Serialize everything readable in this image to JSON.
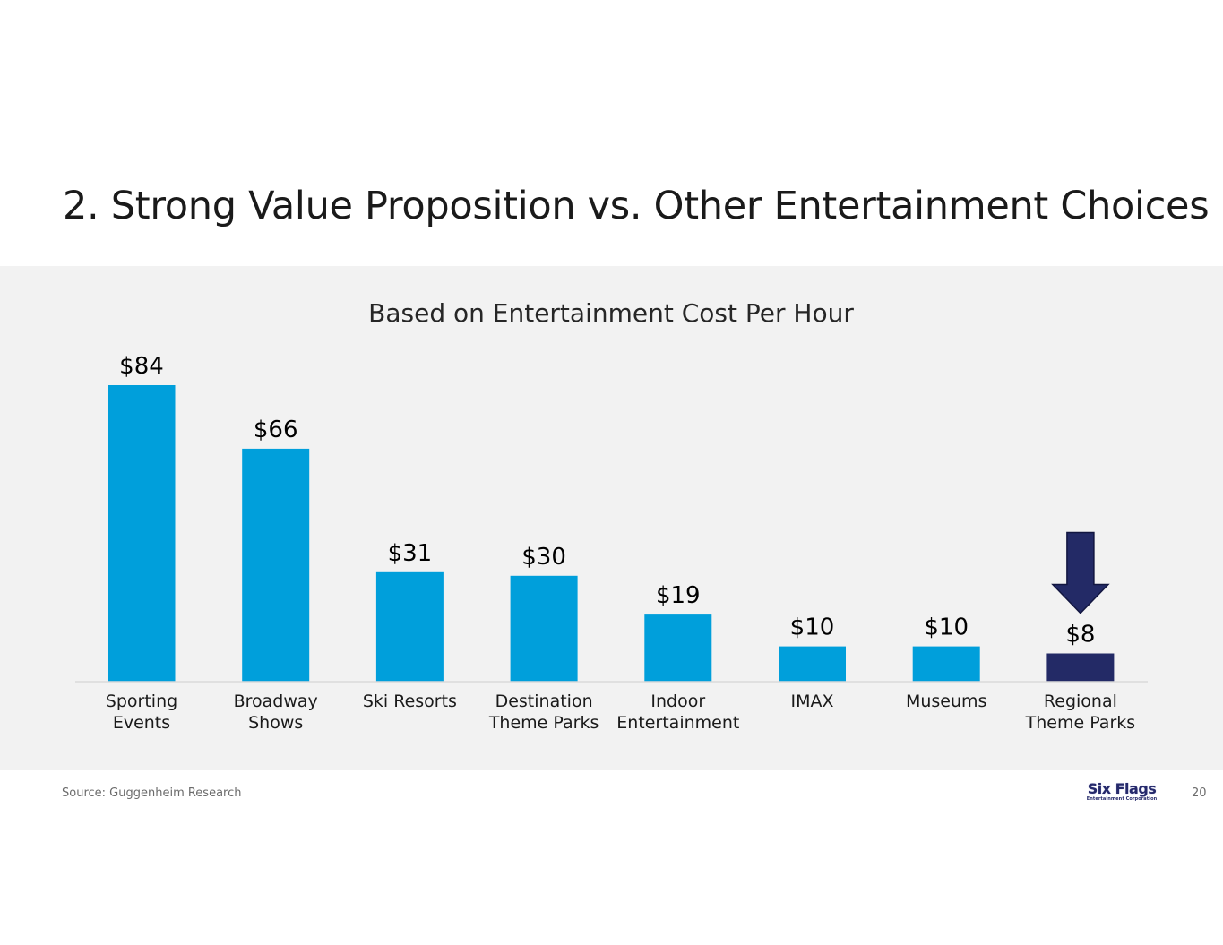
{
  "slide": {
    "title": "2. Strong Value Proposition vs. Other Entertainment Choices",
    "source": "Source: Guggenheim Research",
    "page_number": "20",
    "logo": {
      "main": "Six Flags",
      "sub": "Entertainment Corporation"
    }
  },
  "colors": {
    "bar": "#009fdb",
    "highlight_bar": "#232a66",
    "arrow": "#232a66",
    "panel_background": "#f2f2f2",
    "axis": "#d9d9d9"
  },
  "icons": {
    "highlight_marker": "down-arrow-icon"
  },
  "chart_data": {
    "type": "bar",
    "title": "Based on Entertainment Cost Per Hour",
    "xlabel": "",
    "ylabel": "",
    "grid": false,
    "ylim": [
      0,
      84
    ],
    "categories": [
      [
        "Sporting",
        "Events"
      ],
      [
        "Broadway",
        "Shows"
      ],
      [
        "Ski Resorts"
      ],
      [
        "Destination",
        "Theme Parks"
      ],
      [
        "Indoor",
        "Entertainment"
      ],
      [
        "IMAX"
      ],
      [
        "Museums"
      ],
      [
        "Regional",
        "Theme Parks"
      ]
    ],
    "values": [
      84,
      66,
      31,
      30,
      19,
      10,
      10,
      8
    ],
    "value_labels": [
      "$84",
      "$66",
      "$31",
      "$30",
      "$19",
      "$10",
      "$10",
      "$8"
    ],
    "highlight_index": 7
  }
}
